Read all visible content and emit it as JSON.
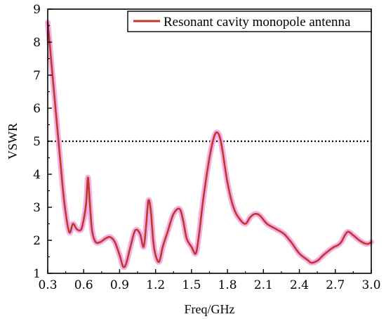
{
  "chart_data": {
    "type": "line",
    "xlabel": "Freq/GHz",
    "ylabel": "VSWR",
    "xlim": [
      0.3,
      3.0
    ],
    "ylim": [
      1,
      9
    ],
    "xticks": [
      "0.3",
      "0.6",
      "0.9",
      "1.2",
      "1.5",
      "1.8",
      "2.1",
      "2.4",
      "2.7",
      "3.0"
    ],
    "yticks": [
      "1",
      "2",
      "3",
      "4",
      "5",
      "6",
      "7",
      "8",
      "9"
    ],
    "legend": {
      "position": "top-right"
    },
    "series": [
      {
        "name": "Resonant cavity monopole antenna",
        "color": "#c0392b",
        "glow_color": "#f3a6e6",
        "x": [
          0.3,
          0.35,
          0.4,
          0.44,
          0.48,
          0.51,
          0.54,
          0.57,
          0.59,
          0.62,
          0.635,
          0.65,
          0.67,
          0.7,
          0.74,
          0.78,
          0.82,
          0.86,
          0.9,
          0.93,
          0.955,
          0.99,
          1.03,
          1.07,
          1.1,
          1.12,
          1.14,
          1.16,
          1.18,
          1.2,
          1.23,
          1.26,
          1.3,
          1.35,
          1.4,
          1.43,
          1.46,
          1.5,
          1.535,
          1.56,
          1.6,
          1.65,
          1.69,
          1.72,
          1.75,
          1.8,
          1.85,
          1.9,
          1.95,
          1.99,
          2.03,
          2.07,
          2.13,
          2.2,
          2.27,
          2.33,
          2.4,
          2.47,
          2.5,
          2.55,
          2.6,
          2.65,
          2.69,
          2.72,
          2.75,
          2.8,
          2.85,
          2.9,
          2.95,
          2.98,
          3.0
        ],
        "y": [
          8.6,
          6.6,
          4.6,
          3.1,
          2.25,
          2.5,
          2.35,
          2.3,
          2.45,
          3.1,
          3.9,
          3.2,
          2.3,
          1.95,
          1.95,
          2.05,
          2.1,
          1.95,
          1.55,
          1.2,
          1.3,
          1.8,
          2.3,
          2.2,
          1.8,
          2.4,
          3.2,
          2.9,
          2.0,
          1.55,
          1.35,
          1.8,
          2.25,
          2.8,
          2.95,
          2.6,
          2.05,
          1.8,
          1.6,
          2.1,
          3.3,
          4.5,
          5.15,
          5.25,
          4.9,
          3.75,
          3.0,
          2.65,
          2.5,
          2.7,
          2.8,
          2.75,
          2.5,
          2.35,
          2.2,
          1.95,
          1.6,
          1.4,
          1.32,
          1.38,
          1.55,
          1.7,
          1.8,
          1.85,
          1.95,
          2.25,
          2.15,
          2.0,
          1.9,
          1.9,
          1.95
        ]
      }
    ],
    "reference_line": {
      "y": 5,
      "style": "dotted",
      "color": "#000000"
    }
  }
}
